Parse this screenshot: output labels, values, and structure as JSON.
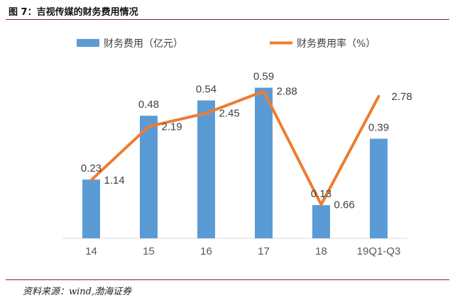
{
  "figure": {
    "title": "图 7：吉视传媒的财务费用情况",
    "source": "资料来源：wind,渤海证券"
  },
  "chart_data": {
    "type": "bar",
    "categories": [
      "14",
      "15",
      "16",
      "17",
      "18",
      "19Q1-Q3"
    ],
    "series": [
      {
        "name": "财务费用（亿元）",
        "kind": "bar",
        "axis": "left",
        "color": "#5b9bd5",
        "values": [
          0.23,
          0.48,
          0.54,
          0.59,
          0.13,
          0.39
        ],
        "labels": [
          "0.23",
          "0.48",
          "0.54",
          "0.59",
          "0.13",
          "0.39"
        ]
      },
      {
        "name": "财务费用率（%）",
        "kind": "line",
        "axis": "right",
        "color": "#ed7d31",
        "values": [
          1.14,
          2.19,
          2.45,
          2.88,
          0.66,
          2.78
        ],
        "labels": [
          "1.14",
          "2.19",
          "2.45",
          "2.88",
          "0.66",
          "2.78"
        ]
      }
    ],
    "ylim_left": [
      0,
      0.7
    ],
    "ylim_right": [
      0,
      3.5
    ],
    "legend_position": "top",
    "grid": false
  }
}
